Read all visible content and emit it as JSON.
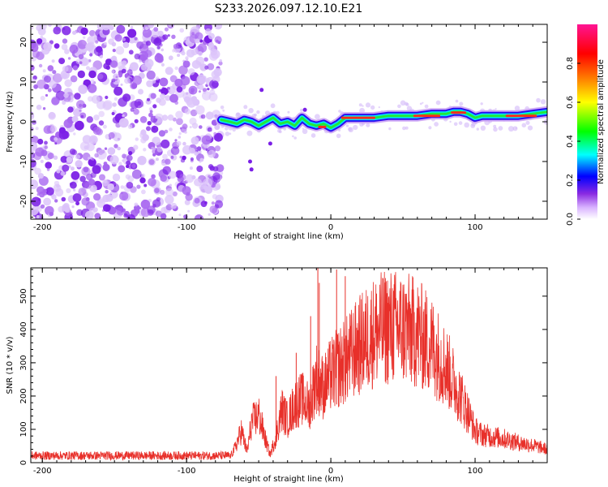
{
  "title": "S233.2026.097.12.10.E21",
  "chart_data": [
    {
      "type": "heatmap",
      "xlabel": "Height of straight line (km)",
      "ylabel": "Frequency (Hz)",
      "xlim": [
        -208,
        150
      ],
      "ylim": [
        -24.5,
        24.5
      ],
      "xticks": [
        -200,
        -100,
        0,
        100
      ],
      "xtick_labels": [
        "-200",
        "-100",
        "0",
        "100"
      ],
      "yticks": [
        -20,
        -10,
        0,
        10,
        20
      ],
      "ytick_labels": [
        "-20",
        "-10",
        "0",
        "10",
        "20"
      ],
      "noise_region_km": [
        -208,
        -76
      ],
      "ridge_points": {
        "x": [
          -76,
          -70,
          -65,
          -60,
          -55,
          -50,
          -45,
          -40,
          -35,
          -30,
          -25,
          -20,
          -15,
          -10,
          -5,
          0,
          5,
          10,
          20,
          30,
          40,
          50,
          60,
          70,
          80,
          85,
          90,
          95,
          100,
          105,
          110,
          120,
          130,
          140,
          150
        ],
        "y": [
          0.5,
          0.0,
          -0.5,
          0.5,
          0.0,
          -1.0,
          0.0,
          1.0,
          -0.5,
          0.0,
          -1.0,
          1.0,
          -0.5,
          -1.0,
          -0.5,
          -1.5,
          -0.5,
          1.0,
          1.0,
          1.0,
          1.5,
          1.5,
          1.5,
          2.0,
          2.0,
          2.5,
          2.5,
          2.0,
          1.0,
          1.5,
          1.5,
          1.5,
          1.5,
          2.0,
          2.5
        ]
      },
      "colorbar": {
        "label": "Normalized spectral amplitude",
        "range": [
          0,
          1
        ],
        "ticks": [
          0.0,
          0.2,
          0.4,
          0.6,
          0.8
        ],
        "tick_labels": [
          "0.0",
          "0.2",
          "0.4",
          "0.6",
          "0.8"
        ],
        "colors": [
          "#ffffff",
          "#8a2be2",
          "#0000ff",
          "#00ffff",
          "#00ff00",
          "#ffff00",
          "#ff8000",
          "#ff0000",
          "#ff1493"
        ]
      }
    },
    {
      "type": "line",
      "xlabel": "Height of straight line (km)",
      "ylabel": "SNR (10 * v/v)",
      "xlim": [
        -208,
        150
      ],
      "ylim": [
        0,
        585
      ],
      "xticks": [
        -200,
        -100,
        0,
        100
      ],
      "xtick_labels": [
        "-200",
        "-100",
        "0",
        "100"
      ],
      "yticks": [
        0,
        100,
        200,
        300,
        400,
        500
      ],
      "ytick_labels": [
        "0",
        "100",
        "200",
        "300",
        "400",
        "500"
      ],
      "series": [
        {
          "name": "SNR",
          "color": "#e8302a",
          "envelope_x": [
            -208,
            -70,
            -66,
            -62,
            -58,
            -55,
            -50,
            -45,
            -42,
            -38,
            -34,
            -30,
            -25,
            -20,
            -15,
            -10,
            -5,
            0,
            10,
            20,
            30,
            40,
            50,
            60,
            70,
            80,
            90,
            95,
            100,
            105,
            110,
            120,
            130,
            140,
            150
          ],
          "envelope_y": [
            20,
            20,
            60,
            120,
            40,
            150,
            180,
            80,
            30,
            100,
            200,
            160,
            220,
            240,
            210,
            320,
            280,
            330,
            380,
            440,
            490,
            510,
            505,
            485,
            440,
            360,
            250,
            190,
            120,
            105,
            100,
            90,
            75,
            65,
            50
          ],
          "spikes_x": [
            -38,
            -24,
            -14,
            -9,
            -8,
            4,
            10
          ],
          "spikes_y": [
            260,
            330,
            440,
            585,
            540,
            580,
            560
          ]
        }
      ]
    }
  ]
}
